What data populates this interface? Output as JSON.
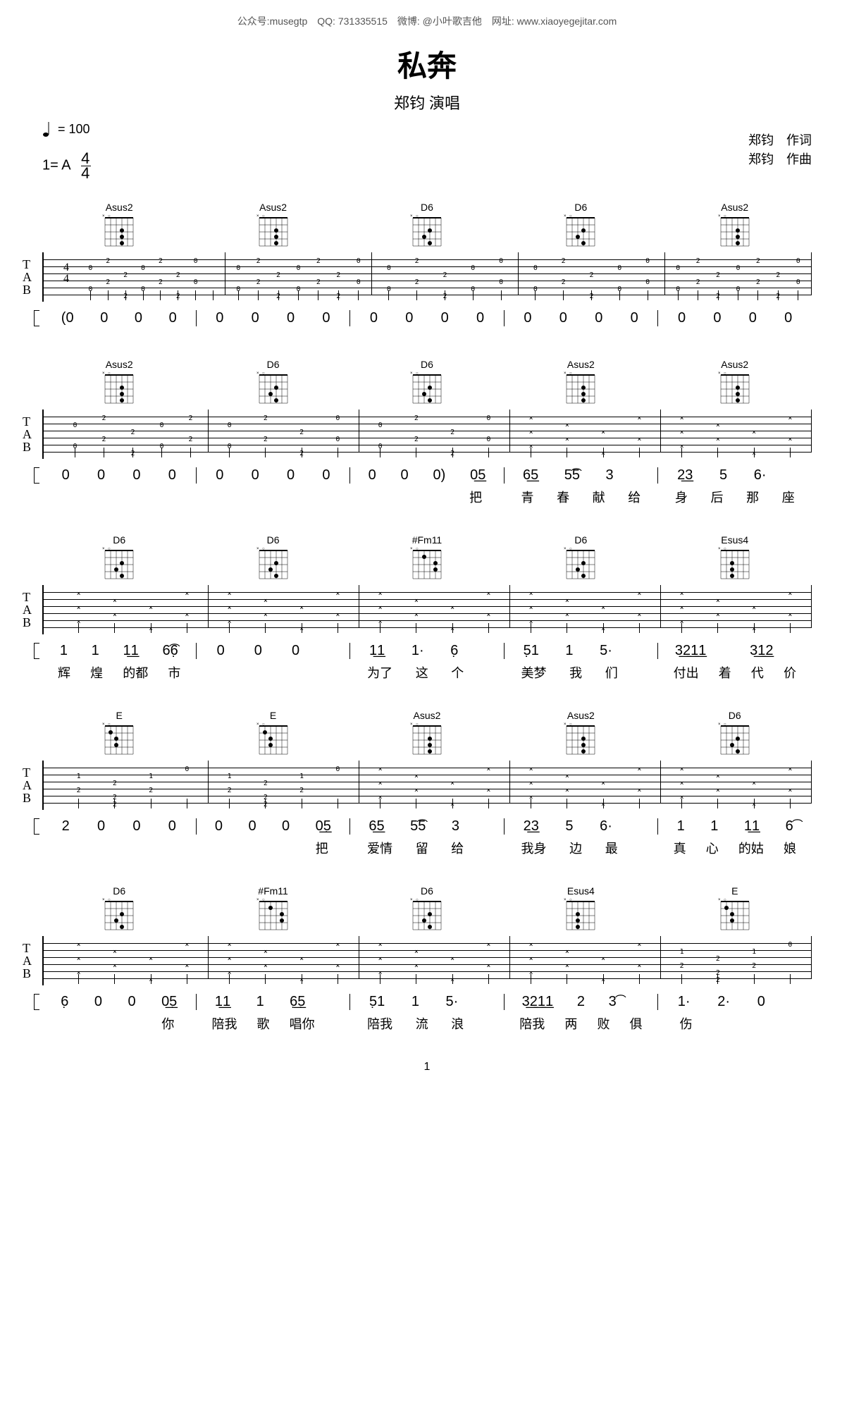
{
  "top_bar": "公众号:musegtp　QQ: 731335515　微博: @小叶歌吉他　网址: www.xiaoyegejitar.com",
  "title": "私奔",
  "subtitle": "郑钧 演唱",
  "tempo_label": "= 100",
  "key": "1= A",
  "time_sig_top": "4",
  "time_sig_bot": "4",
  "lyricist": "郑钧　作词",
  "composer": "郑钧　作曲",
  "page_num": "1",
  "systems": [
    {
      "chords": [
        "Asus2",
        "Asus2",
        "D6",
        "D6",
        "Asus2"
      ],
      "has_time_sig": true,
      "tab": [
        [
          [
            "",
            "0",
            "",
            "",
            "0",
            ""
          ],
          [
            "2",
            "",
            "",
            "2",
            "",
            ""
          ],
          [
            "",
            "",
            "2",
            "",
            "",
            "2"
          ],
          [
            "",
            "0",
            "",
            "",
            "0",
            ""
          ],
          [
            "2",
            "",
            "",
            "2",
            "",
            ""
          ],
          [
            "",
            "",
            "2",
            "",
            "",
            "2"
          ],
          [
            "0",
            "",
            "",
            "0",
            "",
            ""
          ],
          [
            "",
            "",
            "",
            "",
            "",
            ""
          ]
        ],
        [
          [
            "",
            "0",
            "",
            "",
            "0",
            ""
          ],
          [
            "2",
            "",
            "",
            "2",
            "",
            ""
          ],
          [
            "",
            "",
            "2",
            "",
            "",
            "2"
          ],
          [
            "",
            "0",
            "",
            "",
            "0",
            ""
          ],
          [
            "2",
            "",
            "",
            "2",
            "",
            ""
          ],
          [
            "",
            "",
            "2",
            "",
            "",
            "2"
          ],
          [
            "0",
            "",
            "",
            "0",
            "",
            ""
          ]
        ],
        [
          [
            "",
            "0",
            "",
            "",
            "0",
            ""
          ],
          [
            "2",
            "",
            "",
            "2",
            "",
            ""
          ],
          [
            "",
            "",
            "2",
            "",
            "",
            "2"
          ],
          [
            "",
            "0",
            "",
            "",
            "0",
            ""
          ],
          [
            "0",
            "",
            "",
            "0",
            "",
            ""
          ]
        ],
        [
          [
            "",
            "0",
            "",
            "",
            "0",
            ""
          ],
          [
            "2",
            "",
            "",
            "2",
            "",
            ""
          ],
          [
            "",
            "",
            "2",
            "",
            "",
            "2"
          ],
          [
            "",
            "0",
            "",
            "",
            "0",
            ""
          ],
          [
            "0",
            "",
            "",
            "0",
            "",
            ""
          ]
        ],
        [
          [
            "",
            "0",
            "",
            "",
            "0",
            ""
          ],
          [
            "2",
            "",
            "",
            "2",
            "",
            ""
          ],
          [
            "",
            "",
            "2",
            "",
            "",
            "2"
          ],
          [
            "",
            "0",
            "",
            "",
            "0",
            ""
          ],
          [
            "2",
            "",
            "",
            "2",
            "",
            ""
          ],
          [
            "",
            "",
            "2",
            "",
            "",
            "2"
          ],
          [
            "0",
            "",
            "",
            "0",
            "",
            ""
          ]
        ]
      ],
      "jianpu": [
        [
          "(0",
          "0",
          "0",
          "0"
        ],
        [
          "0",
          "0",
          "0",
          "0"
        ],
        [
          "0",
          "0",
          "0",
          "0"
        ],
        [
          "0",
          "0",
          "0",
          "0"
        ],
        [
          "0",
          "0",
          "0",
          "0"
        ]
      ],
      "lyrics": [
        [
          "",
          "",
          "",
          ""
        ],
        [
          "",
          "",
          "",
          ""
        ],
        [
          "",
          "",
          "",
          ""
        ],
        [
          "",
          "",
          "",
          ""
        ],
        [
          "",
          "",
          "",
          ""
        ]
      ]
    },
    {
      "chords": [
        "Asus2",
        "D6",
        "D6",
        "Asus2",
        "Asus2"
      ],
      "tab": [
        [
          [
            "",
            "0",
            "",
            "",
            "0",
            ""
          ],
          [
            "2",
            "",
            "",
            "2",
            "",
            ""
          ],
          [
            "",
            "",
            "2",
            "",
            "",
            "2"
          ],
          [
            "",
            "0",
            "",
            "",
            "0",
            ""
          ],
          [
            "2",
            "",
            "",
            "2",
            "",
            ""
          ]
        ],
        [
          [
            "",
            "0",
            "",
            "",
            "0",
            ""
          ],
          [
            "2",
            "",
            "",
            "2",
            "",
            ""
          ],
          [
            "",
            "",
            "2",
            "",
            "",
            "2"
          ],
          [
            "0",
            "",
            "",
            "0",
            "",
            ""
          ]
        ],
        [
          [
            "",
            "0",
            "",
            "",
            "0",
            ""
          ],
          [
            "2",
            "",
            "",
            "2",
            "",
            ""
          ],
          [
            "",
            "",
            "2",
            "",
            "",
            "2"
          ],
          [
            "0",
            "",
            "",
            "0",
            "",
            ""
          ]
        ],
        [
          [
            "×",
            "",
            "×",
            "",
            "×",
            ""
          ],
          [
            "",
            "×",
            "",
            "×",
            "",
            ""
          ],
          [
            "",
            "",
            "×",
            "",
            "",
            "×"
          ],
          [
            "×",
            "",
            "",
            "×",
            "",
            ""
          ]
        ],
        [
          [
            "×",
            "",
            "×",
            "",
            "×",
            ""
          ],
          [
            "",
            "×",
            "",
            "×",
            "",
            ""
          ],
          [
            "",
            "",
            "×",
            "",
            "",
            "×"
          ],
          [
            "×",
            "",
            "",
            "×",
            "",
            ""
          ]
        ]
      ],
      "jianpu": [
        [
          "0",
          "0",
          "0",
          "0"
        ],
        [
          "0",
          "0",
          "0",
          "0"
        ],
        [
          "0",
          "0",
          "0)",
          "0͟5"
        ],
        [
          "6͟5",
          "5͡5",
          "3",
          ""
        ],
        [
          "2͟3",
          "5",
          "6·",
          ""
        ]
      ],
      "lyrics": [
        [
          "",
          "",
          "",
          ""
        ],
        [
          "",
          "",
          "",
          ""
        ],
        [
          "",
          "",
          "",
          "把"
        ],
        [
          "青",
          "春",
          "献",
          "给"
        ],
        [
          "身",
          "后",
          "那",
          "座"
        ]
      ]
    },
    {
      "chords": [
        "D6",
        "D6",
        "#Fm11",
        "D6",
        "Esus4"
      ],
      "tab": [
        [
          [
            "×",
            "",
            "×",
            "",
            "×",
            ""
          ],
          [
            "",
            "×",
            "",
            "×",
            "",
            ""
          ],
          [
            "",
            "",
            "×",
            "",
            "",
            "×"
          ],
          [
            "×",
            "",
            "",
            "×",
            "",
            ""
          ]
        ],
        [
          [
            "×",
            "",
            "×",
            "",
            "×",
            ""
          ],
          [
            "",
            "×",
            "",
            "×",
            "",
            ""
          ],
          [
            "",
            "",
            "×",
            "",
            "",
            "×"
          ],
          [
            "×",
            "",
            "",
            "×",
            "",
            ""
          ]
        ],
        [
          [
            "×",
            "",
            "×",
            "",
            "×",
            ""
          ],
          [
            "",
            "×",
            "",
            "×",
            "",
            ""
          ],
          [
            "",
            "",
            "×",
            "",
            "",
            "×"
          ],
          [
            "×",
            "",
            "",
            "×",
            "",
            ""
          ]
        ],
        [
          [
            "×",
            "",
            "×",
            "",
            "×",
            ""
          ],
          [
            "",
            "×",
            "",
            "×",
            "",
            ""
          ],
          [
            "",
            "",
            "×",
            "",
            "",
            "×"
          ],
          [
            "×",
            "",
            "",
            "×",
            "",
            ""
          ]
        ],
        [
          [
            "×",
            "",
            "×",
            "",
            "×",
            ""
          ],
          [
            "",
            "×",
            "",
            "×",
            "",
            ""
          ],
          [
            "",
            "",
            "×",
            "",
            "",
            "×"
          ],
          [
            "×",
            "",
            "",
            "×",
            "",
            ""
          ]
        ]
      ],
      "jianpu": [
        [
          "1",
          "1",
          "1͟1",
          "6͡6̣"
        ],
        [
          "0",
          "0",
          "0",
          ""
        ],
        [
          "1͟1",
          "1·",
          "6̣",
          ""
        ],
        [
          "5̣1",
          "1",
          "5·",
          ""
        ],
        [
          "3͟2͟1͟1",
          "",
          "3͟1͟2",
          ""
        ]
      ],
      "lyrics": [
        [
          "辉",
          "煌",
          "的都",
          "市"
        ],
        [
          "",
          "",
          "",
          ""
        ],
        [
          "为了",
          "这",
          "个",
          ""
        ],
        [
          "美梦",
          "我",
          "们",
          ""
        ],
        [
          "付出",
          "着",
          "代",
          "价"
        ]
      ]
    },
    {
      "chords": [
        "E",
        "E",
        "Asus2",
        "Asus2",
        "D6"
      ],
      "tab": [
        [
          [
            "",
            "1",
            "",
            "2",
            "",
            ""
          ],
          [
            "",
            "",
            "2",
            "",
            "2",
            "2"
          ],
          [
            "",
            "1",
            "",
            "2",
            "",
            ""
          ],
          [
            "0",
            "",
            "",
            "",
            "",
            ""
          ]
        ],
        [
          [
            "",
            "1",
            "",
            "2",
            "",
            ""
          ],
          [
            "",
            "",
            "2",
            "",
            "2",
            "2"
          ],
          [
            "",
            "1",
            "",
            "2",
            "",
            ""
          ],
          [
            "0",
            "",
            "",
            "",
            "",
            ""
          ]
        ],
        [
          [
            "×",
            "",
            "×",
            "",
            "×",
            ""
          ],
          [
            "",
            "×",
            "",
            "×",
            "",
            ""
          ],
          [
            "",
            "",
            "×",
            "",
            "",
            "×"
          ],
          [
            "×",
            "",
            "",
            "×",
            "",
            ""
          ]
        ],
        [
          [
            "×",
            "",
            "×",
            "",
            "×",
            ""
          ],
          [
            "",
            "×",
            "",
            "×",
            "",
            ""
          ],
          [
            "",
            "",
            "×",
            "",
            "",
            "×"
          ],
          [
            "×",
            "",
            "",
            "×",
            "",
            ""
          ]
        ],
        [
          [
            "×",
            "",
            "×",
            "",
            "×",
            ""
          ],
          [
            "",
            "×",
            "",
            "×",
            "",
            ""
          ],
          [
            "",
            "",
            "×",
            "",
            "",
            "×"
          ],
          [
            "×",
            "",
            "",
            "×",
            "",
            ""
          ]
        ]
      ],
      "jianpu": [
        [
          "2",
          "0",
          "0",
          "0"
        ],
        [
          "0",
          "0",
          "0",
          "0͟5̣"
        ],
        [
          "6͟5",
          "5͡5",
          "3",
          ""
        ],
        [
          "2͟3",
          "5",
          "6·",
          ""
        ],
        [
          "1",
          "1",
          "1͟1",
          "6͡"
        ]
      ],
      "lyrics": [
        [
          "",
          "",
          "",
          ""
        ],
        [
          "",
          "",
          "",
          "把"
        ],
        [
          "爱情",
          "留",
          "给",
          ""
        ],
        [
          "我身",
          "边",
          "最",
          ""
        ],
        [
          "真",
          "心",
          "的姑",
          "娘"
        ]
      ]
    },
    {
      "chords": [
        "D6",
        "#Fm11",
        "D6",
        "Esus4",
        "E"
      ],
      "tab": [
        [
          [
            "×",
            "",
            "×",
            "",
            "×",
            ""
          ],
          [
            "",
            "×",
            "",
            "×",
            "",
            ""
          ],
          [
            "",
            "",
            "×",
            "",
            "",
            "×"
          ],
          [
            "×",
            "",
            "",
            "×",
            "",
            ""
          ]
        ],
        [
          [
            "×",
            "",
            "×",
            "",
            "×",
            ""
          ],
          [
            "",
            "×",
            "",
            "×",
            "",
            ""
          ],
          [
            "",
            "",
            "×",
            "",
            "",
            "×"
          ],
          [
            "×",
            "",
            "",
            "×",
            "",
            ""
          ]
        ],
        [
          [
            "×",
            "",
            "×",
            "",
            "×",
            ""
          ],
          [
            "",
            "×",
            "",
            "×",
            "",
            ""
          ],
          [
            "",
            "",
            "×",
            "",
            "",
            "×"
          ],
          [
            "×",
            "",
            "",
            "×",
            "",
            ""
          ]
        ],
        [
          [
            "×",
            "",
            "×",
            "",
            "×",
            ""
          ],
          [
            "",
            "×",
            "",
            "×",
            "",
            ""
          ],
          [
            "",
            "",
            "×",
            "",
            "",
            "×"
          ],
          [
            "×",
            "",
            "",
            "×",
            "",
            ""
          ]
        ],
        [
          [
            "",
            "1",
            "",
            "2",
            "",
            ""
          ],
          [
            "",
            "",
            "2",
            "",
            "2",
            "2"
          ],
          [
            "",
            "1",
            "",
            "2",
            "",
            ""
          ],
          [
            "0",
            "",
            "",
            "",
            "",
            ""
          ]
        ]
      ],
      "jianpu": [
        [
          "6̣",
          "0",
          "0",
          "0͟5̣"
        ],
        [
          "1͟1",
          "1",
          "6̣͟5̣",
          ""
        ],
        [
          "5̣1",
          "1",
          "5·",
          ""
        ],
        [
          "3͟2͟1͟1",
          "2",
          "3͡",
          ""
        ],
        [
          "1·",
          "2·",
          "0",
          ""
        ]
      ],
      "lyrics": [
        [
          "",
          "",
          "",
          "你"
        ],
        [
          "陪我",
          "歌",
          "唱你",
          ""
        ],
        [
          "陪我",
          "流",
          "浪",
          ""
        ],
        [
          "陪我",
          "两",
          "败",
          "俱"
        ],
        [
          "伤",
          "",
          "",
          ""
        ]
      ]
    }
  ]
}
